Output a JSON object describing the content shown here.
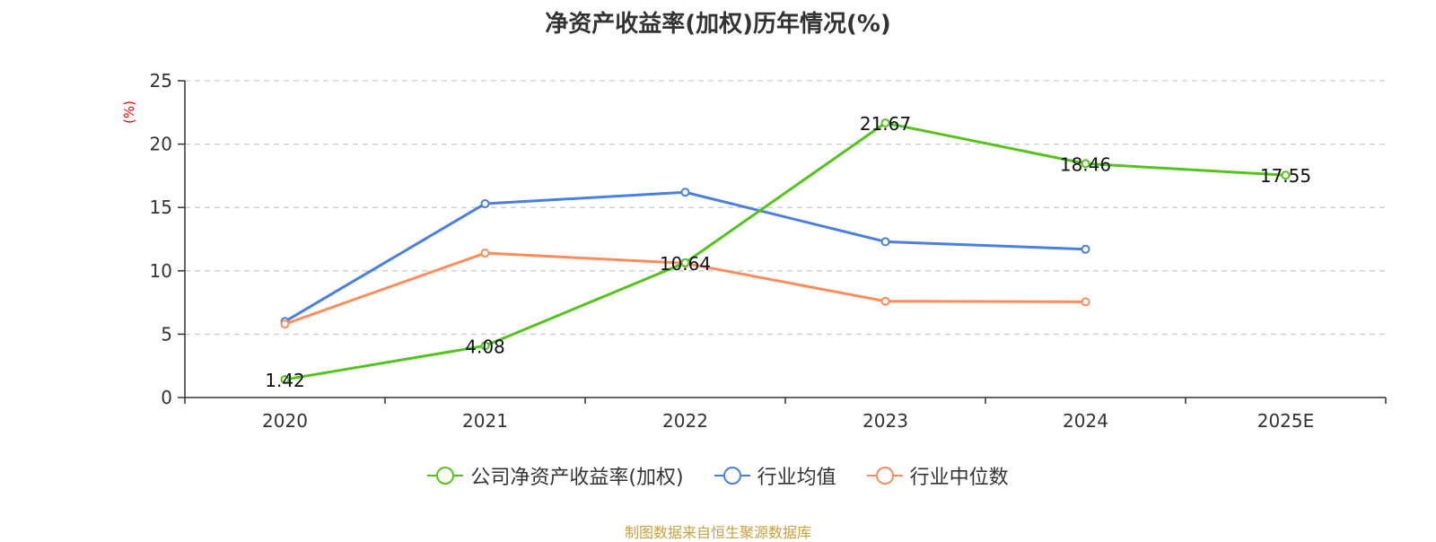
{
  "title": "净资产收益率(加权)历年情况(%)",
  "source": "制图数据来自恒生聚源数据库",
  "colors": {
    "company": "#52c41a",
    "industry_avg": "#4a7fe0",
    "industry_median": "#ff8c5a",
    "unit": "#ff0000",
    "source": "#c8a03c",
    "grid": "#cccccc",
    "axis": "#333333"
  },
  "chart_data": {
    "type": "line",
    "title": "净资产收益率(加权)历年情况(%)",
    "ylabel": "(%)",
    "xlabel": "",
    "categories": [
      "2020",
      "2021",
      "2022",
      "2023",
      "2024",
      "2025E"
    ],
    "ylim": [
      0,
      25
    ],
    "yticks": [
      "0",
      "5",
      "10",
      "15",
      "20",
      "25"
    ],
    "grid": true,
    "legend_position": "bottom",
    "series": [
      {
        "name": "公司净资产收益率(加权)",
        "color_key": "company",
        "values": [
          1.42,
          4.08,
          10.64,
          21.67,
          18.46,
          17.55
        ],
        "labels": [
          "1.42",
          "4.08",
          "10.64",
          "21.67",
          "18.46",
          "17.55"
        ]
      },
      {
        "name": "行业均值",
        "color_key": "industry_avg",
        "values": [
          6.0,
          15.3,
          16.2,
          12.3,
          11.7,
          null
        ]
      },
      {
        "name": "行业中位数",
        "color_key": "industry_median",
        "values": [
          5.8,
          11.4,
          10.6,
          7.6,
          7.55,
          null
        ]
      }
    ]
  }
}
